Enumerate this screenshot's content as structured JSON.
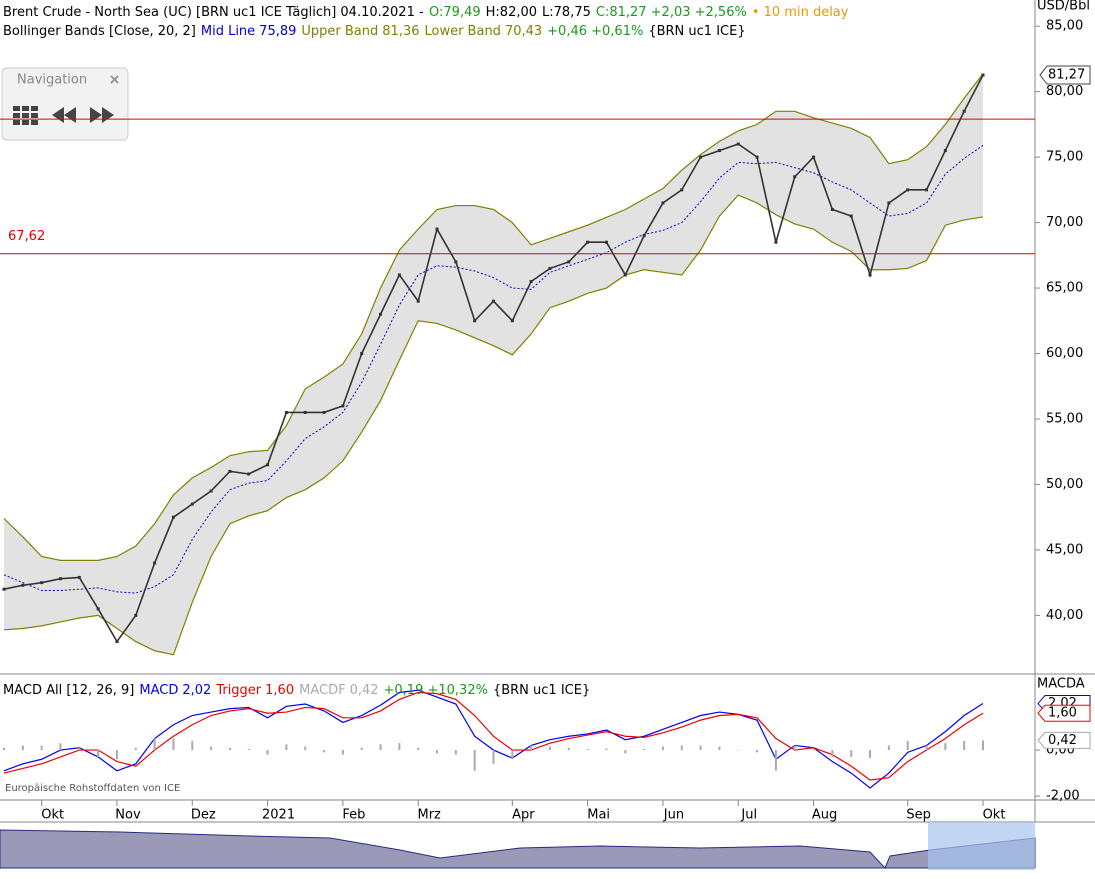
{
  "navigation": {
    "title": "Navigation"
  },
  "source": "Europäische Rohstoffdaten von ICE",
  "chart_data": [
    {
      "type": "line",
      "title_parts": [
        {
          "text": "Brent Crude - North Sea (UC) [BRN uc1 ICE Täglich] 04.10.2021 -",
          "color": "#000000"
        },
        {
          "text": "O:79,49",
          "color": "#1a9a1a"
        },
        {
          "text": "H:82,00",
          "color": "#000000"
        },
        {
          "text": "L:78,75",
          "color": "#000000"
        },
        {
          "text": "C:81,27 +2,03 +2,56%",
          "color": "#1a9a1a"
        },
        {
          "text": "• 10 min delay",
          "color": "#e89a00"
        }
      ],
      "legend_prefix": "Bollinger Bands [Close, 20, 2]",
      "legend_change": "+0,46 +0,61%",
      "legend_change_color": "#1a9a1a",
      "legend_suffix": "{BRN uc1 ICE}",
      "ylabel": "USD/Bbl",
      "categories": [
        null,
        null,
        "Okt",
        null,
        null,
        null,
        "Nov",
        null,
        null,
        null,
        "Dez",
        null,
        null,
        null,
        "2021",
        null,
        null,
        null,
        "Feb",
        null,
        null,
        null,
        "Mrz",
        null,
        null,
        null,
        null,
        "Apr",
        null,
        null,
        null,
        "Mai",
        null,
        null,
        null,
        "Jun",
        null,
        null,
        null,
        "Jul",
        null,
        null,
        null,
        "Aug",
        null,
        null,
        null,
        null,
        "Sep",
        null,
        null,
        null,
        "Okt"
      ],
      "close": {
        "color": "#333333",
        "values": [
          42.0,
          42.3,
          42.5,
          42.8,
          42.9,
          40.5,
          38.0,
          40.0,
          44.0,
          47.5,
          48.5,
          49.5,
          51.0,
          50.8,
          51.5,
          55.5,
          55.5,
          55.5,
          56.0,
          60.0,
          63.0,
          66.0,
          64.0,
          69.5,
          67.0,
          62.5,
          64.0,
          62.5,
          65.5,
          66.5,
          67.0,
          68.5,
          68.5,
          66.0,
          69.0,
          71.5,
          72.5,
          75.0,
          75.5,
          76.0,
          75.0,
          68.5,
          73.5,
          75.0,
          71.0,
          70.5,
          66.0,
          71.5,
          72.5,
          72.5,
          75.5,
          78.5,
          81.27
        ]
      },
      "series": [
        {
          "name": "Mid Line",
          "color": "#0000cc",
          "dashed": true,
          "last_label": "75,89",
          "values": [
            43.1,
            42.5,
            41.9,
            41.9,
            42.0,
            42.1,
            41.8,
            41.7,
            42.2,
            43.1,
            45.8,
            47.9,
            49.6,
            50.1,
            50.3,
            51.8,
            53.5,
            54.4,
            55.5,
            57.8,
            60.7,
            63.7,
            66.0,
            66.7,
            66.6,
            66.3,
            65.8,
            65.0,
            64.9,
            66.2,
            66.7,
            67.2,
            67.7,
            68.5,
            69.1,
            69.4,
            70.0,
            71.6,
            73.4,
            74.6,
            74.5,
            74.6,
            74.2,
            73.8,
            73.1,
            72.5,
            71.5,
            70.5,
            70.7,
            71.5,
            73.7,
            74.9,
            75.89
          ]
        },
        {
          "name": "Upper Band",
          "color": "#808000",
          "last_label": "81,36",
          "values": [
            47.4,
            46.0,
            44.5,
            44.2,
            44.2,
            44.2,
            44.5,
            45.3,
            47.0,
            49.2,
            50.5,
            51.3,
            52.2,
            52.5,
            52.6,
            54.5,
            57.3,
            58.2,
            59.2,
            61.5,
            65.0,
            67.9,
            69.5,
            71.0,
            71.3,
            71.3,
            71.0,
            70.0,
            68.3,
            68.8,
            69.3,
            69.8,
            70.4,
            71.0,
            71.8,
            72.6,
            74.0,
            75.2,
            76.2,
            77.0,
            77.5,
            78.5,
            78.5,
            78.0,
            77.6,
            77.2,
            76.5,
            74.5,
            74.8,
            75.8,
            77.5,
            79.5,
            81.36
          ]
        },
        {
          "name": "Lower Band",
          "color": "#808000",
          "last_label": "70,43",
          "values": [
            38.9,
            39.0,
            39.2,
            39.5,
            39.8,
            40.0,
            39.0,
            38.0,
            37.3,
            37.0,
            41.0,
            44.5,
            47.0,
            47.6,
            48.0,
            49.0,
            49.6,
            50.5,
            51.8,
            54.0,
            56.4,
            59.5,
            62.5,
            62.3,
            61.8,
            61.2,
            60.6,
            59.9,
            61.5,
            63.5,
            64.0,
            64.6,
            65.0,
            66.0,
            66.4,
            66.2,
            66.0,
            67.9,
            70.5,
            72.1,
            71.5,
            70.6,
            69.9,
            69.5,
            68.5,
            67.8,
            66.4,
            66.4,
            66.5,
            67.1,
            69.8,
            70.2,
            70.43
          ]
        }
      ],
      "band_fill": "#e2e2e2",
      "ylim": [
        35.6,
        87
      ],
      "yticks": [
        {
          "value": 85,
          "label": "85,00"
        },
        {
          "value": 80,
          "label": "80,00"
        },
        {
          "value": 75,
          "label": "75,00"
        },
        {
          "value": 70,
          "label": "70,00"
        },
        {
          "value": 65,
          "label": "65,00"
        },
        {
          "value": 60,
          "label": "60,00"
        },
        {
          "value": 55,
          "label": "55,00"
        },
        {
          "value": 50,
          "label": "50,00"
        },
        {
          "value": 45,
          "label": "45,00"
        },
        {
          "value": 40,
          "label": "40,00"
        }
      ],
      "last_price": {
        "value": 81.27,
        "label": "81,27"
      },
      "hlines": [
        {
          "value": 77.9,
          "color": "#e00000"
        },
        {
          "value": 67.62,
          "label": "67,62",
          "color": "#e00000"
        }
      ],
      "grid": false
    },
    {
      "type": "line",
      "legend_prefix": "MACD All [12, 26, 9]",
      "legend_change": "+0,19 +10,32%",
      "legend_change_color": "#1a9a1a",
      "legend_suffix": "{BRN uc1 ICE}",
      "ylabel": "MACDA",
      "series": [
        {
          "name": "MACD",
          "color": "#0000ee",
          "last_label": "2,02",
          "values": [
            -0.9,
            -0.6,
            -0.4,
            0.0,
            0.1,
            -0.3,
            -0.9,
            -0.6,
            0.5,
            1.1,
            1.5,
            1.65,
            1.8,
            1.85,
            1.4,
            1.9,
            2.0,
            1.7,
            1.2,
            1.5,
            1.95,
            2.5,
            2.6,
            2.3,
            2.0,
            0.6,
            0.0,
            -0.35,
            0.2,
            0.45,
            0.6,
            0.7,
            0.87,
            0.45,
            0.6,
            0.9,
            1.2,
            1.5,
            1.65,
            1.55,
            1.3,
            -0.4,
            0.2,
            0.1,
            -0.5,
            -1.0,
            -1.65,
            -1.0,
            -0.1,
            0.2,
            0.8,
            1.5,
            2.02
          ]
        },
        {
          "name": "Trigger",
          "color": "#ee0000",
          "last_label": "1,60",
          "values": [
            -1.0,
            -0.8,
            -0.6,
            -0.3,
            0.0,
            0.0,
            -0.5,
            -0.7,
            0.0,
            0.6,
            1.1,
            1.5,
            1.7,
            1.8,
            1.6,
            1.65,
            1.85,
            1.8,
            1.4,
            1.4,
            1.7,
            2.2,
            2.5,
            2.45,
            2.2,
            1.5,
            0.6,
            0.0,
            0.0,
            0.3,
            0.5,
            0.65,
            0.8,
            0.6,
            0.55,
            0.75,
            1.0,
            1.3,
            1.5,
            1.55,
            1.4,
            0.5,
            0.0,
            0.1,
            -0.2,
            -0.7,
            -1.3,
            -1.2,
            -0.5,
            0.0,
            0.5,
            1.1,
            1.6
          ]
        },
        {
          "name": "MACDF",
          "color": "#aaaaaa",
          "histogram": true,
          "last_label": "0,42",
          "values": [
            0.1,
            0.2,
            0.2,
            0.3,
            0.1,
            -0.3,
            -0.4,
            0.1,
            0.5,
            0.5,
            0.4,
            0.15,
            0.1,
            0.05,
            -0.2,
            0.25,
            0.15,
            -0.1,
            -0.2,
            0.1,
            0.25,
            0.3,
            0.1,
            -0.15,
            -0.2,
            -0.9,
            -0.6,
            -0.35,
            0.2,
            0.15,
            0.1,
            0.05,
            0.07,
            -0.15,
            0.05,
            0.15,
            0.2,
            0.2,
            0.15,
            0.0,
            -0.1,
            -0.9,
            0.2,
            0.0,
            -0.3,
            -0.3,
            -0.35,
            0.2,
            0.4,
            0.2,
            0.3,
            0.4,
            0.42
          ]
        }
      ],
      "ylim": [
        -2.17,
        3.26
      ],
      "yticks": [
        {
          "value": 0,
          "label": "0,00"
        },
        {
          "value": -2,
          "label": "-2,00"
        }
      ],
      "grid": false
    }
  ]
}
